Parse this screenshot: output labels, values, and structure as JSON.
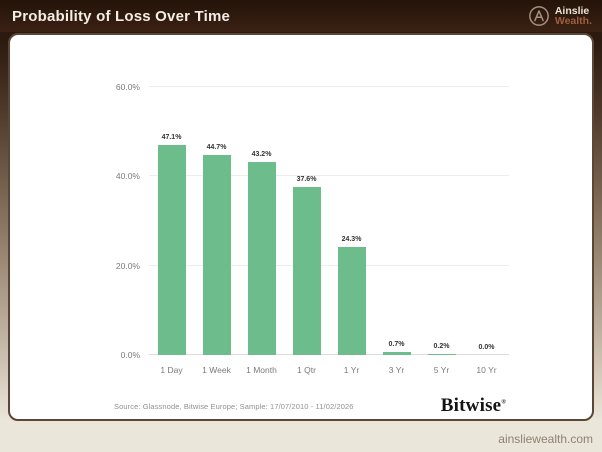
{
  "header": {
    "title": "Probability of Loss Over Time",
    "brand": {
      "icon": "ainslie-a-monogram-icon",
      "line1": "Ainslie",
      "line2": "Wealth."
    }
  },
  "chart_data": {
    "type": "bar",
    "title": "Probability of Loss Over Time",
    "categories": [
      "1 Day",
      "1 Week",
      "1 Month",
      "1 Qtr",
      "1 Yr",
      "3 Yr",
      "5 Yr",
      "10 Yr"
    ],
    "values": [
      47.1,
      44.7,
      43.2,
      37.6,
      24.3,
      0.7,
      0.2,
      0.0
    ],
    "value_labels": [
      "47.1%",
      "44.7%",
      "43.2%",
      "37.6%",
      "24.3%",
      "0.7%",
      "0.2%",
      "0.0%"
    ],
    "xlabel": "",
    "ylabel": "",
    "ylim": [
      0,
      60
    ],
    "yticks": [
      0,
      20,
      40,
      60
    ],
    "ytick_labels": [
      "0.0%",
      "20.0%",
      "40.0%",
      "60.0%"
    ],
    "grid": true,
    "legend": false,
    "bar_color": "#6dbd8c"
  },
  "footer": {
    "source": "Source: Glassnode, Bitwise Europe; Sample: 17/07/2010 - 11/02/2026",
    "bitwise_wordmark": "Bitwise",
    "bitwise_trademark": "®"
  },
  "page": {
    "website": "ainsliewealth.com"
  },
  "colors": {
    "header_brown": "#2b1a10",
    "bar_green": "#6dbd8c",
    "cream_background": "#ebe6da",
    "copper_accent": "#9e5e3e",
    "card_border": "#5c4736"
  }
}
